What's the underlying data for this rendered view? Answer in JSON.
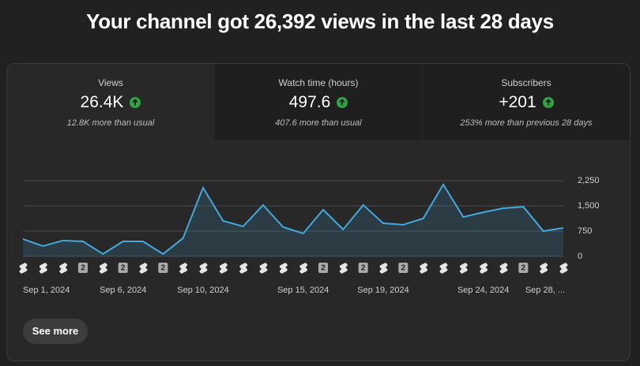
{
  "header": {
    "title": "Your channel got 26,392 views in the last 28 days"
  },
  "tabs": [
    {
      "label": "Views",
      "value": "26.4K",
      "note": "12.8K more than usual"
    },
    {
      "label": "Watch time (hours)",
      "value": "497.6",
      "note": "407.6 more than usual"
    },
    {
      "label": "Subscribers",
      "value": "+201",
      "note": "253% more than previous 28 days"
    }
  ],
  "chart_data": {
    "type": "area",
    "categories": [
      "Sep 1, 2024",
      null,
      null,
      null,
      null,
      "Sep 6, 2024",
      null,
      null,
      null,
      "Sep 10, 2024",
      null,
      null,
      null,
      null,
      "Sep 15, 2024",
      null,
      null,
      null,
      "Sep 19, 2024",
      null,
      null,
      null,
      null,
      "Sep 24, 2024",
      null,
      null,
      null,
      "Sep 28, ..."
    ],
    "values": [
      515,
      305,
      470,
      445,
      70,
      445,
      445,
      70,
      540,
      2040,
      1055,
      890,
      1525,
      870,
      680,
      1385,
      800,
      1525,
      985,
      940,
      1125,
      2135,
      1170,
      1310,
      1430,
      1475,
      750,
      845
    ],
    "color": "#41a9dd",
    "ylim": [
      0,
      2250
    ],
    "yticks": [
      0,
      750,
      {
        "value": 1500,
        "label": "1,500"
      },
      {
        "value": 2250,
        "label": "2,250"
      }
    ],
    "grid": true,
    "upload_badges": [
      null,
      null,
      null,
      "2",
      null,
      "2",
      null,
      "2",
      null,
      null,
      null,
      null,
      null,
      null,
      null,
      "2",
      null,
      "2",
      null,
      "2",
      null,
      null,
      null,
      null,
      null,
      "2",
      null,
      null
    ]
  },
  "button": "See more"
}
